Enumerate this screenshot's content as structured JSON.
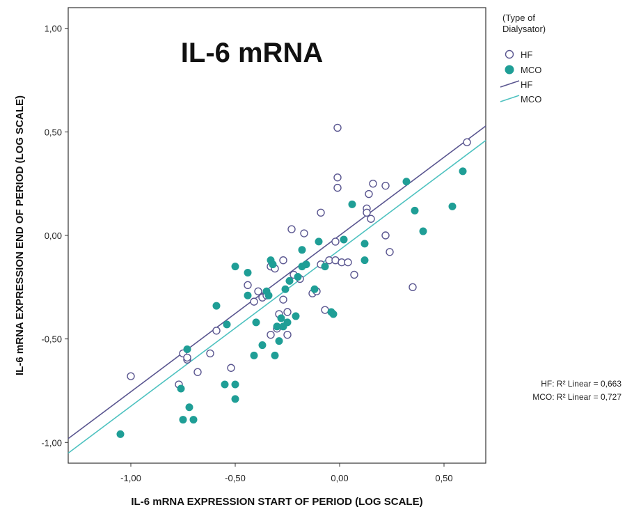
{
  "chart_data": {
    "type": "scatter",
    "title": "IL-6 mRNA",
    "xlabel": "IL-6 mRNA EXPRESSION START OF PERIOD (LOG SCALE)",
    "ylabel": "IL-6 mRNA EXPRESSION END OF PERIOD (LOG SCALE)",
    "xlim": [
      -1.3,
      0.7
    ],
    "ylim": [
      -1.1,
      1.1
    ],
    "x_ticks": [
      -1.0,
      -0.5,
      0.0,
      0.5
    ],
    "x_tick_labels": [
      "-1,00",
      "-0,50",
      "0,00",
      "0,50"
    ],
    "y_ticks": [
      -1.0,
      -0.5,
      0.0,
      0.5,
      1.0
    ],
    "y_tick_labels": [
      "-1,00",
      "-0,50",
      "0,00",
      "0,50",
      "1,00"
    ],
    "grid": false,
    "legend": {
      "title": "(Type of Dialysator)",
      "title_lines": [
        "(Type of",
        "Dialysator)"
      ],
      "placement": "right",
      "entries": [
        {
          "label": "HF",
          "kind": "marker-open"
        },
        {
          "label": "MCO",
          "kind": "marker-filled"
        },
        {
          "label": "HF",
          "kind": "line"
        },
        {
          "label": "MCO",
          "kind": "line"
        }
      ]
    },
    "annotations": [
      "HF: R² Linear = 0,663",
      "MCO: R² Linear = 0,727"
    ],
    "colors": {
      "HF": "#5a5690",
      "MCO": "#1f9e96",
      "MCO_line": "#4ec2c0"
    },
    "series": [
      {
        "name": "HF",
        "marker": "open-circle",
        "fit": {
          "slope": 0.755,
          "intercept": 0.0
        },
        "points": [
          [
            -1.0,
            -0.68
          ],
          [
            -0.77,
            -0.72
          ],
          [
            -0.75,
            -0.57
          ],
          [
            -0.73,
            -0.6
          ],
          [
            -0.73,
            -0.59
          ],
          [
            -0.68,
            -0.66
          ],
          [
            -0.62,
            -0.57
          ],
          [
            -0.59,
            -0.46
          ],
          [
            -0.52,
            -0.64
          ],
          [
            -0.44,
            -0.24
          ],
          [
            -0.41,
            -0.32
          ],
          [
            -0.39,
            -0.27
          ],
          [
            -0.37,
            -0.3
          ],
          [
            -0.35,
            -0.29
          ],
          [
            -0.33,
            -0.15
          ],
          [
            -0.31,
            -0.16
          ],
          [
            -0.33,
            -0.48
          ],
          [
            -0.3,
            -0.45
          ],
          [
            -0.29,
            -0.38
          ],
          [
            -0.27,
            -0.31
          ],
          [
            -0.27,
            -0.12
          ],
          [
            -0.25,
            -0.37
          ],
          [
            -0.25,
            -0.48
          ],
          [
            -0.23,
            0.03
          ],
          [
            -0.22,
            -0.19
          ],
          [
            -0.19,
            -0.21
          ],
          [
            -0.17,
            0.01
          ],
          [
            -0.13,
            -0.28
          ],
          [
            -0.11,
            -0.27
          ],
          [
            -0.09,
            -0.14
          ],
          [
            -0.09,
            0.11
          ],
          [
            -0.07,
            -0.36
          ],
          [
            -0.05,
            -0.12
          ],
          [
            -0.02,
            -0.03
          ],
          [
            -0.02,
            -0.12
          ],
          [
            -0.01,
            0.28
          ],
          [
            -0.01,
            0.23
          ],
          [
            -0.01,
            0.52
          ],
          [
            0.01,
            -0.13
          ],
          [
            0.04,
            -0.13
          ],
          [
            0.07,
            -0.19
          ],
          [
            0.13,
            0.13
          ],
          [
            0.13,
            0.11
          ],
          [
            0.14,
            0.2
          ],
          [
            0.15,
            0.08
          ],
          [
            0.16,
            0.25
          ],
          [
            0.22,
            0.24
          ],
          [
            0.22,
            0.0
          ],
          [
            0.24,
            -0.08
          ],
          [
            0.35,
            -0.25
          ],
          [
            0.61,
            0.45
          ]
        ]
      },
      {
        "name": "MCO",
        "marker": "filled-circle",
        "fit": {
          "slope": 0.755,
          "intercept": -0.07
        },
        "points": [
          [
            -1.05,
            -0.96
          ],
          [
            -0.76,
            -0.74
          ],
          [
            -0.75,
            -0.89
          ],
          [
            -0.73,
            -0.55
          ],
          [
            -0.72,
            -0.83
          ],
          [
            -0.7,
            -0.89
          ],
          [
            -0.59,
            -0.34
          ],
          [
            -0.55,
            -0.72
          ],
          [
            -0.54,
            -0.43
          ],
          [
            -0.5,
            -0.15
          ],
          [
            -0.5,
            -0.72
          ],
          [
            -0.5,
            -0.79
          ],
          [
            -0.44,
            -0.18
          ],
          [
            -0.44,
            -0.29
          ],
          [
            -0.41,
            -0.58
          ],
          [
            -0.4,
            -0.42
          ],
          [
            -0.37,
            -0.53
          ],
          [
            -0.35,
            -0.27
          ],
          [
            -0.34,
            -0.29
          ],
          [
            -0.33,
            -0.12
          ],
          [
            -0.32,
            -0.14
          ],
          [
            -0.31,
            -0.58
          ],
          [
            -0.3,
            -0.44
          ],
          [
            -0.29,
            -0.51
          ],
          [
            -0.28,
            -0.4
          ],
          [
            -0.27,
            -0.44
          ],
          [
            -0.26,
            -0.26
          ],
          [
            -0.25,
            -0.42
          ],
          [
            -0.24,
            -0.22
          ],
          [
            -0.21,
            -0.39
          ],
          [
            -0.2,
            -0.2
          ],
          [
            -0.18,
            -0.07
          ],
          [
            -0.18,
            -0.15
          ],
          [
            -0.16,
            -0.14
          ],
          [
            -0.12,
            -0.26
          ],
          [
            -0.1,
            -0.03
          ],
          [
            -0.07,
            -0.15
          ],
          [
            -0.04,
            -0.37
          ],
          [
            -0.03,
            -0.38
          ],
          [
            0.02,
            -0.02
          ],
          [
            0.06,
            0.15
          ],
          [
            0.12,
            -0.12
          ],
          [
            0.12,
            -0.04
          ],
          [
            0.32,
            0.26
          ],
          [
            0.36,
            0.12
          ],
          [
            0.4,
            0.02
          ],
          [
            0.54,
            0.14
          ],
          [
            0.59,
            0.31
          ]
        ]
      }
    ]
  }
}
